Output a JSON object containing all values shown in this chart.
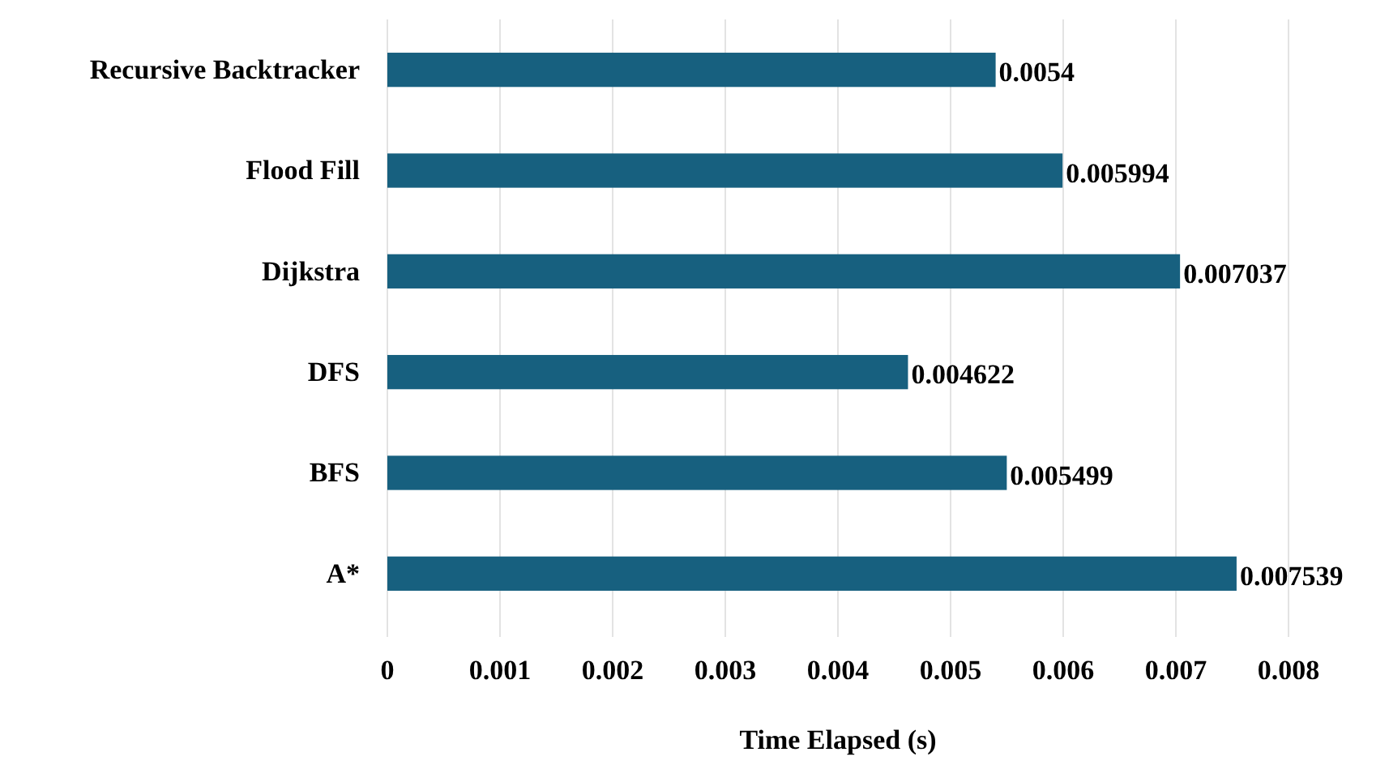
{
  "chart_data": {
    "type": "bar",
    "orientation": "horizontal",
    "xlabel": "Time Elapsed (s)",
    "categories": [
      "Recursive Backtracker",
      "Flood Fill",
      "Dijkstra",
      "DFS",
      "BFS",
      "A*"
    ],
    "values": [
      0.0054,
      0.005994,
      0.007037,
      0.004622,
      0.005499,
      0.007539
    ],
    "color": "#17607f",
    "data_labels": true,
    "grid": "x",
    "xlim": [
      0,
      0.008
    ],
    "xticks": [
      0,
      0.001,
      0.002,
      0.003,
      0.004,
      0.005,
      0.006,
      0.007,
      0.008
    ]
  }
}
